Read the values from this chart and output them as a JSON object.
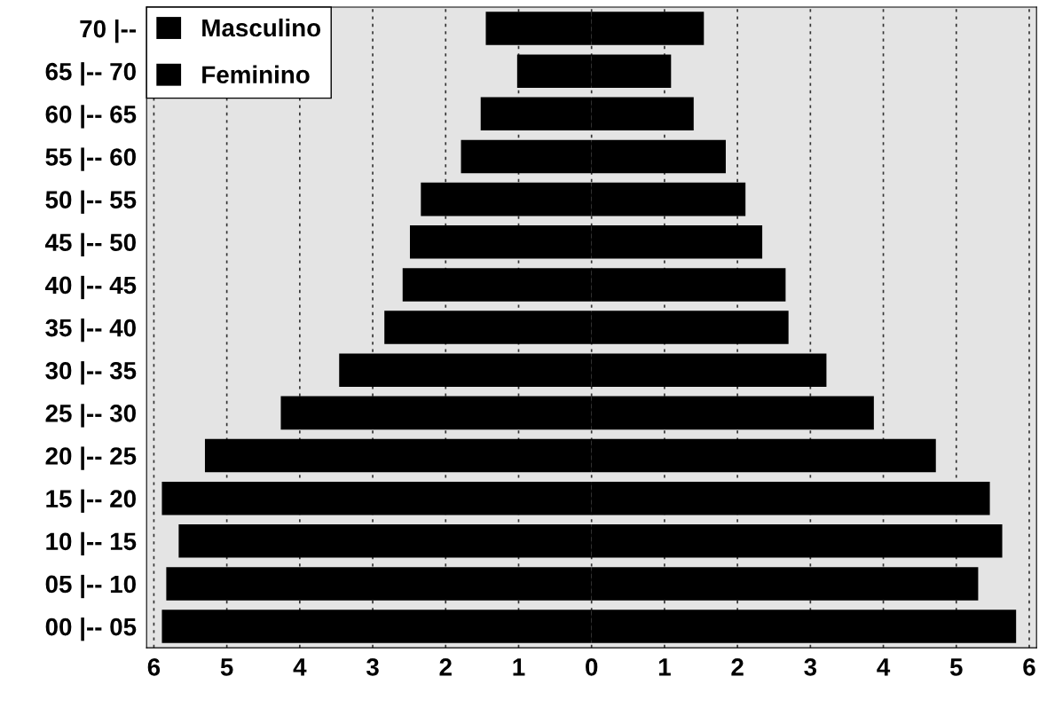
{
  "chart_data": {
    "type": "bar",
    "orientation": "horizontal",
    "stacked": true,
    "categories": [
      "70 |--",
      "65 |-- 70",
      "60 |-- 65",
      "55 |-- 60",
      "50 |-- 55",
      "45 |-- 50",
      "40 |-- 45",
      "35 |-- 40",
      "30 |-- 35",
      "25 |-- 30",
      "20 |-- 25",
      "15 |-- 20",
      "10 |-- 15",
      "05 |-- 10",
      "00 |-- 05"
    ],
    "series": [
      {
        "name": "Masculino",
        "color": "#000000",
        "values": [
          -1.45,
          -1.02,
          -1.52,
          -1.79,
          -2.34,
          -2.49,
          -2.59,
          -2.84,
          -3.46,
          -4.26,
          -5.3,
          -5.89,
          -5.66,
          -5.83,
          -5.89
        ]
      },
      {
        "name": "Feminino",
        "color": "#000000",
        "values": [
          1.54,
          1.09,
          1.4,
          1.84,
          2.11,
          2.34,
          2.66,
          2.7,
          3.22,
          3.87,
          4.72,
          5.46,
          5.63,
          5.3,
          5.82
        ]
      }
    ],
    "xlim": [
      -6.1,
      6.1
    ],
    "xticks": [
      {
        "value": -6,
        "label": "6"
      },
      {
        "value": -5,
        "label": "5"
      },
      {
        "value": -4,
        "label": "4"
      },
      {
        "value": -3,
        "label": "3"
      },
      {
        "value": -2,
        "label": "2"
      },
      {
        "value": -1,
        "label": "1"
      },
      0,
      1,
      2,
      3,
      4,
      5,
      6
    ],
    "grid": "x",
    "legend": "top left"
  }
}
